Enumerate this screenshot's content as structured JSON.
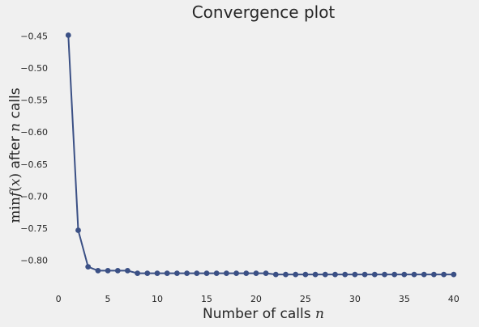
{
  "chart_data": {
    "type": "line",
    "title": "Convergence plot",
    "xlabel": {
      "prefix": "Number of calls ",
      "math": "n"
    },
    "ylabel": {
      "min": "min",
      "func": "f",
      "open": "(",
      "var": "x",
      "close": ")",
      "mid": " after ",
      "n": "n",
      "suffix": " calls"
    },
    "xlim": [
      -0.5,
      41
    ],
    "ylim": [
      -0.842,
      -0.432
    ],
    "xticks": [
      0,
      5,
      10,
      15,
      20,
      25,
      30,
      35,
      40
    ],
    "xtick_labels": [
      "0",
      "5",
      "10",
      "15",
      "20",
      "25",
      "30",
      "35",
      "40"
    ],
    "yticks": [
      -0.45,
      -0.5,
      -0.55,
      -0.6,
      -0.65,
      -0.7,
      -0.75,
      -0.8
    ],
    "ytick_labels": [
      "−0.45",
      "−0.50",
      "−0.55",
      "−0.60",
      "−0.65",
      "−0.70",
      "−0.75",
      "−0.80"
    ],
    "grid": false,
    "series": [
      {
        "color": "#3b5085",
        "x": [
          1,
          2,
          3,
          4,
          5,
          6,
          7,
          8,
          9,
          10,
          11,
          12,
          13,
          14,
          15,
          16,
          17,
          18,
          19,
          20,
          21,
          22,
          23,
          24,
          25,
          26,
          27,
          28,
          29,
          30,
          31,
          32,
          33,
          34,
          35,
          36,
          37,
          38,
          39,
          40
        ],
        "values": [
          -0.449,
          -0.753,
          -0.81,
          -0.816,
          -0.816,
          -0.816,
          -0.816,
          -0.82,
          -0.82,
          -0.82,
          -0.82,
          -0.82,
          -0.82,
          -0.82,
          -0.82,
          -0.82,
          -0.82,
          -0.82,
          -0.82,
          -0.82,
          -0.82,
          -0.822,
          -0.822,
          -0.822,
          -0.822,
          -0.822,
          -0.822,
          -0.822,
          -0.822,
          -0.822,
          -0.822,
          -0.822,
          -0.822,
          -0.822,
          -0.822,
          -0.822,
          -0.822,
          -0.822,
          -0.822,
          -0.822
        ]
      }
    ]
  }
}
